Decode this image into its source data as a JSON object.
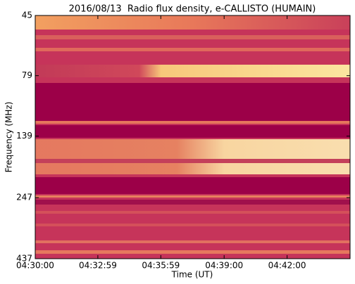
{
  "chart_data": {
    "type": "spectrogram",
    "title": "2016/08/13  Radio flux density, e-CALLISTO (HUMAIN)",
    "xlabel": "Time (UT)",
    "ylabel": "Frequency (MHz)",
    "xlim": [
      16200,
      17100
    ],
    "xticks": [
      {
        "value": 16200,
        "label": "04:30:00"
      },
      {
        "value": 16379,
        "label": "04:32:59"
      },
      {
        "value": 16559,
        "label": "04:35:59"
      },
      {
        "value": 16740,
        "label": "04:39:00"
      },
      {
        "value": 16920,
        "label": "04:42:00"
      }
    ],
    "ylim": [
      45,
      437
    ],
    "yticks": [
      45,
      79,
      139,
      247,
      437
    ],
    "ylog": true,
    "yinverted": true
  }
}
